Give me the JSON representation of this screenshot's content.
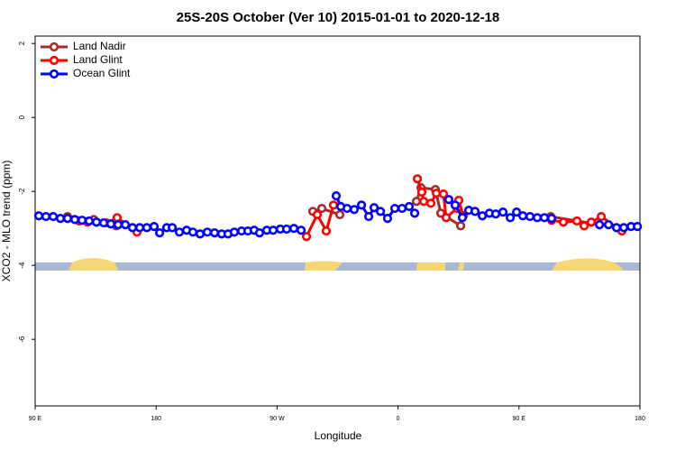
{
  "chart_data": {
    "type": "line",
    "title": "25S-20S October (Ver 10)   2015-01-01 to 2020-12-18",
    "x_label": "Longitude",
    "y_label": "XCO2 - MLO trend (ppm)",
    "xlim": [
      90,
      540
    ],
    "ylim": [
      -7.8,
      2.2
    ],
    "xticks": [
      {
        "value": 90,
        "label": "90 E"
      },
      {
        "value": 180,
        "label": "180"
      },
      {
        "value": 270,
        "label": "90 W"
      },
      {
        "value": 360,
        "label": "0"
      },
      {
        "value": 450,
        "label": "90 E"
      },
      {
        "value": 540,
        "label": "180"
      }
    ],
    "yticks": [
      -6,
      -4,
      -2,
      0,
      2
    ],
    "legend": "top-left",
    "series": [
      {
        "name": "Land Nadir",
        "color": "#a52a2a",
        "x": [
          114.1,
          133.6,
          150.4,
          null,
          296.6,
          303.3,
          316.7,
          null,
          373.7,
          377.1,
          387.8,
          391.8,
          406.6,
          null,
          473.6,
          509.9
        ],
        "values": [
          -2.68,
          -2.76,
          -2.93,
          null,
          -2.54,
          -2.46,
          -2.63,
          null,
          -2.27,
          -1.9,
          -1.95,
          -2.59,
          -2.93,
          null,
          -2.68,
          -2.9
        ]
      },
      {
        "name": "Land Glint",
        "color": "#ff0000",
        "x": [
          114.1,
          122.9,
          128.9,
          135.6,
          143.0,
          151.0,
          165.8,
          null,
          291.9,
          299.9,
          306.6,
          312.0,
          null,
          374.4,
          377.7,
          379.1,
          384.4,
          388.5,
          393.8,
          395.8,
          403.9,
          405.2,
          408.6,
          null,
          474.3,
          483.0,
          493.1,
          498.5,
          503.8,
          511.2,
          526.6
        ],
        "values": [
          -2.73,
          -2.8,
          -2.83,
          -2.83,
          -2.85,
          -2.71,
          -3.1,
          null,
          -3.22,
          -2.63,
          -3.07,
          -2.37,
          null,
          -1.66,
          -2.02,
          -2.27,
          -2.32,
          -2.05,
          -2.07,
          -2.71,
          -2.46,
          -2.24,
          -2.66,
          null,
          -2.78,
          -2.83,
          -2.8,
          -2.93,
          -2.83,
          -2.68,
          -3.07
        ]
      },
      {
        "name": "Ocean Glint",
        "color": "#0000ff",
        "x": [
          92.7,
          98.0,
          103.4,
          108.8,
          114.1,
          119.5,
          124.9,
          130.2,
          135.6,
          141.0,
          146.3,
          151.7,
          157.1,
          162.4,
          167.8,
          173.1,
          178.5,
          182.6,
          187.9,
          192.0,
          197.3,
          202.7,
          207.4,
          212.7,
          218.1,
          223.5,
          228.8,
          233.5,
          238.2,
          243.6,
          248.3,
          253.0,
          257.0,
          262.4,
          267.1,
          272.4,
          277.1,
          282.5,
          287.9,
          null,
          314.0,
          317.4,
          322.1,
          327.4,
          332.8,
          338.2,
          342.2,
          346.9,
          352.2,
          357.6,
          363.0,
          368.3,
          372.4,
          null,
          397.8,
          402.5,
          407.9,
          412.6,
          417.3,
          422.7,
          428.0,
          432.7,
          438.1,
          443.5,
          448.2,
          452.9,
          458.2,
          463.6,
          468.9,
          474.3,
          null,
          509.9,
          516.6,
          522.6,
          528.0,
          533.4,
          538.1
        ],
        "values": [
          -2.66,
          -2.68,
          -2.68,
          -2.73,
          -2.73,
          -2.76,
          -2.78,
          -2.8,
          -2.83,
          -2.85,
          -2.88,
          -2.9,
          -2.9,
          -2.98,
          -2.98,
          -2.98,
          -2.95,
          -3.12,
          -2.98,
          -2.98,
          -3.1,
          -3.05,
          -3.1,
          -3.15,
          -3.1,
          -3.12,
          -3.15,
          -3.15,
          -3.1,
          -3.07,
          -3.07,
          -3.05,
          -3.12,
          -3.05,
          -3.05,
          -3.02,
          -3.02,
          -3.0,
          -3.05,
          null,
          -2.12,
          -2.41,
          -2.46,
          -2.49,
          -2.37,
          -2.68,
          -2.44,
          -2.54,
          -2.73,
          -2.46,
          -2.46,
          -2.41,
          -2.59,
          null,
          -2.22,
          -2.37,
          -2.71,
          -2.51,
          -2.54,
          -2.66,
          -2.59,
          -2.61,
          -2.56,
          -2.71,
          -2.56,
          -2.66,
          -2.68,
          -2.71,
          -2.71,
          -2.73,
          null,
          -2.9,
          -2.9,
          -2.98,
          -2.98,
          -2.95,
          -2.95
        ]
      }
    ]
  }
}
